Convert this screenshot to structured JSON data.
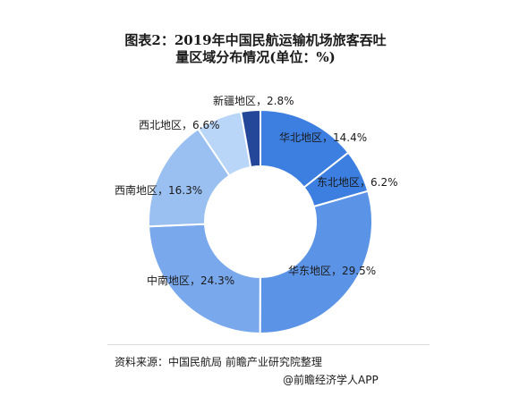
{
  "chart_data": {
    "type": "donut",
    "title_lines": [
      "图表2：2019年中国民航运输机场旅客吞吐",
      "量区域分布情况(单位：%)"
    ],
    "separator": "，",
    "unit": "%",
    "labels": [
      "华北地区",
      "东北地区",
      "华东地区",
      "中南地区",
      "西南地区",
      "西北地区",
      "新疆地区"
    ],
    "values": [
      14.4,
      6.2,
      29.5,
      24.3,
      16.3,
      6.6,
      2.8
    ],
    "colors": [
      "#3d7fe0",
      "#3d7fe0",
      "#5b93e6",
      "#7aa8ec",
      "#9ac0f2",
      "#b9d5f7",
      "#24479a"
    ]
  },
  "footer": {
    "source": "资料来源：中国民航局 前瞻产业研究院整理",
    "credit": "@前瞻经济学人APP"
  }
}
